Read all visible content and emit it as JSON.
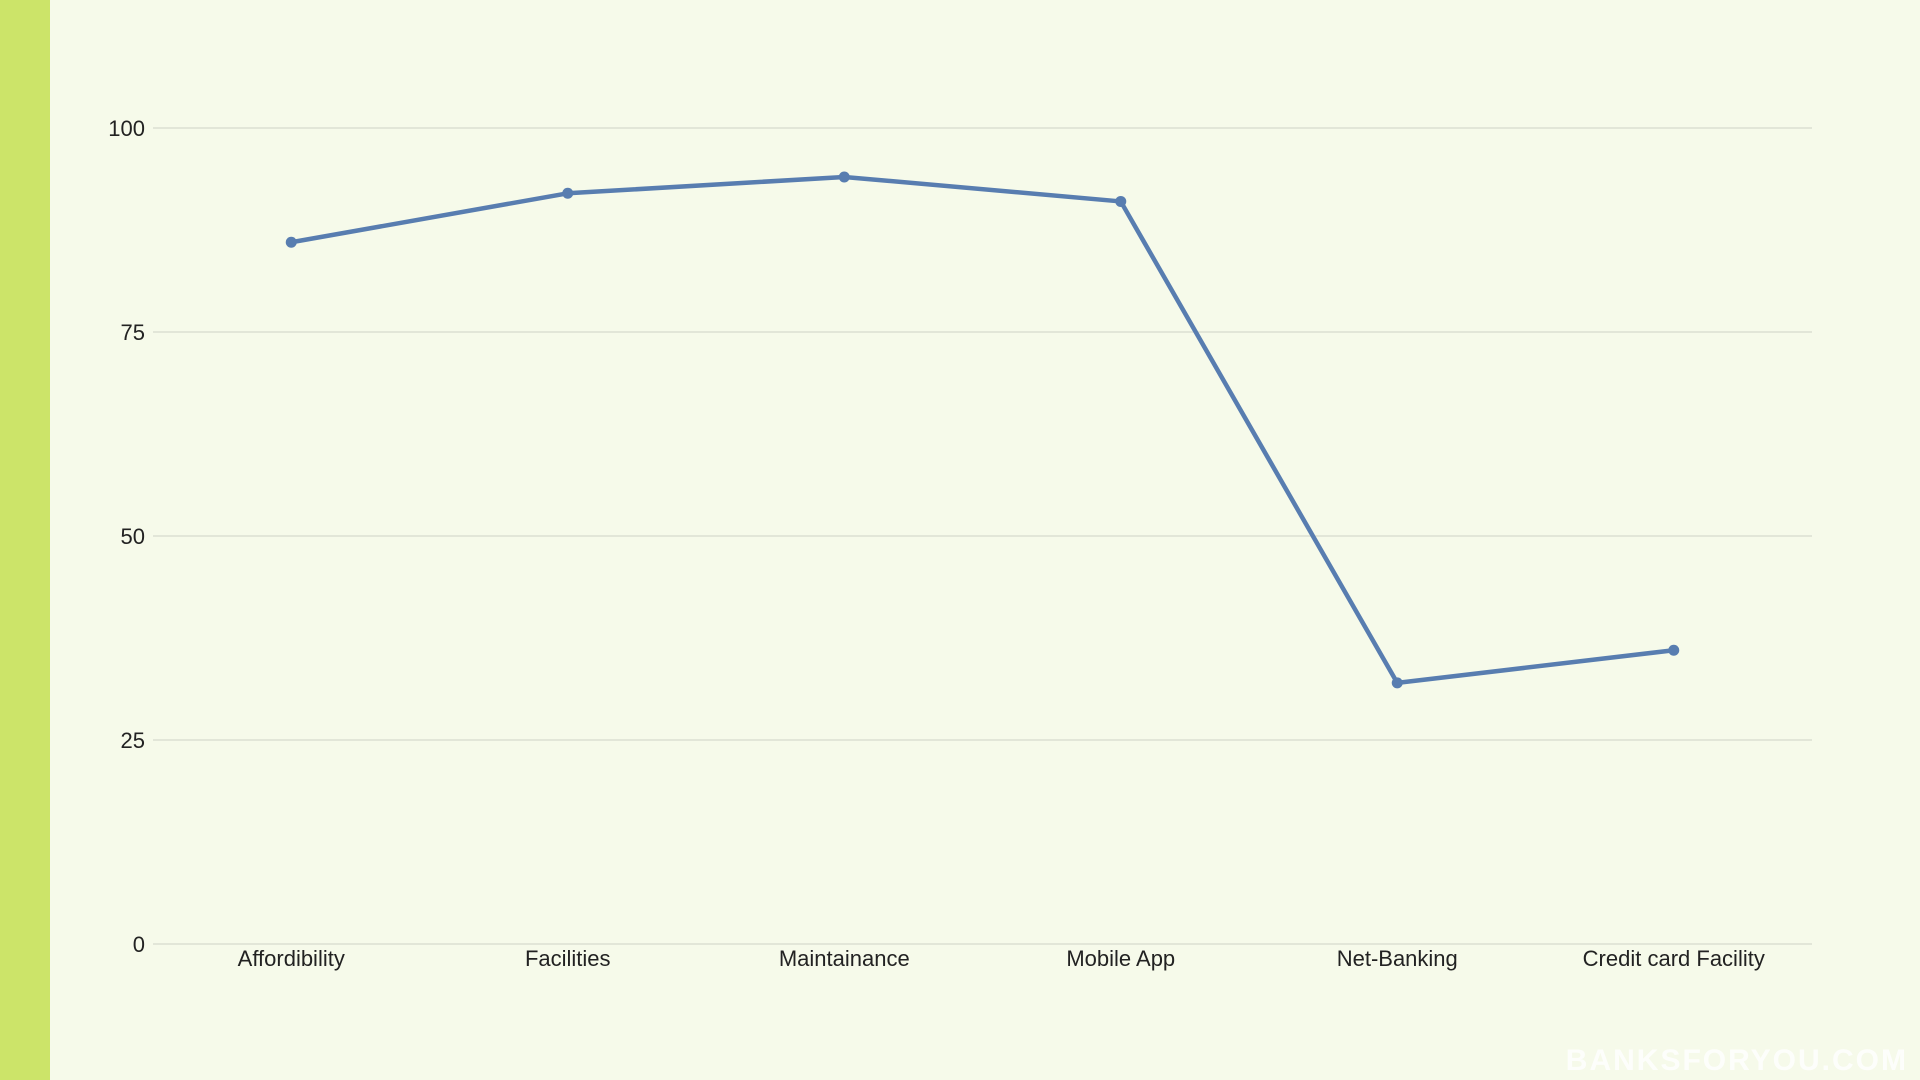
{
  "colors": {
    "background": "#f6faea",
    "side_bar": "#cce469",
    "series_line": "#587db0",
    "grid": "#d6dbcd",
    "text": "#222222"
  },
  "watermark": "BANKSFORYOU.COM",
  "chart_data": {
    "type": "line",
    "categories": [
      "Affordibility",
      "Facilities",
      "Maintainance",
      "Mobile App",
      "Net-Banking",
      "Credit card Facility"
    ],
    "series": [
      {
        "values": [
          86,
          92,
          94,
          91,
          32,
          36
        ]
      }
    ],
    "title": "",
    "xlabel": "",
    "ylabel": "",
    "ylim": [
      0,
      100
    ],
    "yticks": [
      0,
      25,
      50,
      75,
      100
    ],
    "grid": "horizontal",
    "legend": "none",
    "markers": true
  }
}
